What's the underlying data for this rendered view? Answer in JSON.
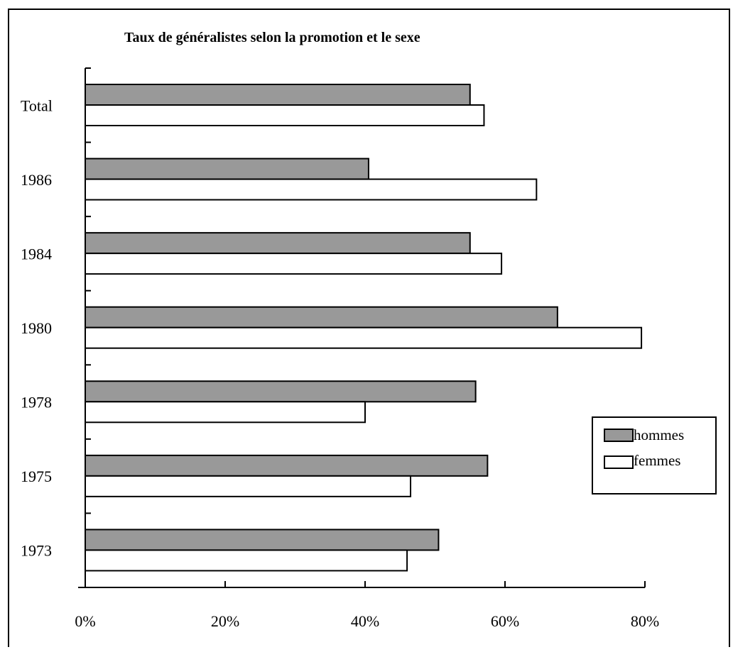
{
  "chart_data": {
    "type": "bar",
    "orientation": "horizontal",
    "title": "Taux de généralistes selon la promotion et le sexe",
    "categories": [
      "Total",
      "1986",
      "1984",
      "1980",
      "1978",
      "1975",
      "1973"
    ],
    "series": [
      {
        "name": "hommes",
        "color": "#999999",
        "values": [
          55,
          40.5,
          55,
          67.5,
          55.8,
          57.5,
          50.5
        ]
      },
      {
        "name": "femmes",
        "color": "#ffffff",
        "values": [
          57,
          64.5,
          59.5,
          79.5,
          40,
          46.5,
          46
        ]
      }
    ],
    "xlim": [
      0,
      80
    ],
    "xticks": [
      "0%",
      "20%",
      "40%",
      "60%",
      "80%"
    ],
    "xlabel": "",
    "ylabel": "",
    "grid": false,
    "legend_position": "right"
  }
}
